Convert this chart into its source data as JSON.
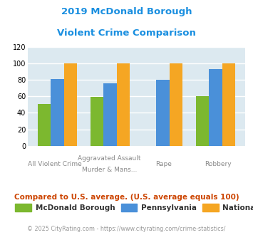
{
  "title_line1": "2019 McDonald Borough",
  "title_line2": "Violent Crime Comparison",
  "categories_top": [
    "",
    "Aggravated Assault",
    "",
    ""
  ],
  "categories_bottom": [
    "All Violent Crime",
    "Murder & Mans...",
    "Rape",
    "Robbery"
  ],
  "mcdonald": [
    51,
    59,
    0,
    60
  ],
  "pennsylvania": [
    81,
    76,
    80,
    93
  ],
  "national": [
    100,
    100,
    100,
    100
  ],
  "bar_colors": {
    "mcdonald": "#7cb82f",
    "pennsylvania": "#4a90d9",
    "national": "#f5a623"
  },
  "ylim": [
    0,
    120
  ],
  "yticks": [
    0,
    20,
    40,
    60,
    80,
    100,
    120
  ],
  "bg_color": "#dce9f0",
  "grid_color": "#ffffff",
  "title_color": "#1a8fe0",
  "legend_labels": [
    "McDonald Borough",
    "Pennsylvania",
    "National"
  ],
  "note_text": "Compared to U.S. average. (U.S. average equals 100)",
  "footer_text": "© 2025 CityRating.com - https://www.cityrating.com/crime-statistics/",
  "note_color": "#cc4400",
  "footer_color": "#999999",
  "xtick_color": "#888888"
}
